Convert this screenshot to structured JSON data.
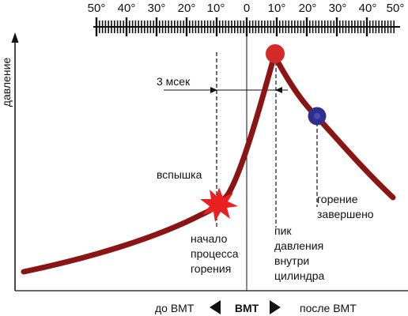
{
  "scale": {
    "tick_labels": [
      "50°",
      "40°",
      "30°",
      "20°",
      "10°",
      "0",
      "10°",
      "20°",
      "30°",
      "40°",
      "50°"
    ]
  },
  "axis": {
    "y_title": "давление"
  },
  "annotations": {
    "interval": "3 мсек",
    "spark": "вспышка",
    "combustion_start": [
      "начало",
      "процесса",
      "горения"
    ],
    "pressure_peak": [
      "пик",
      "давления",
      "внутри",
      "цилиндра"
    ],
    "combustion_end": [
      "горение",
      "завершено"
    ]
  },
  "bottom": {
    "before_tdc": "до ВМТ",
    "tdc": "ВМТ",
    "after_tdc": "после ВМТ"
  },
  "colors": {
    "curve": "#8b1414",
    "peak_marker": "#d42a2a",
    "end_marker": "#2f2f8f",
    "spark": "#e8201f",
    "axis": "#111111"
  }
}
